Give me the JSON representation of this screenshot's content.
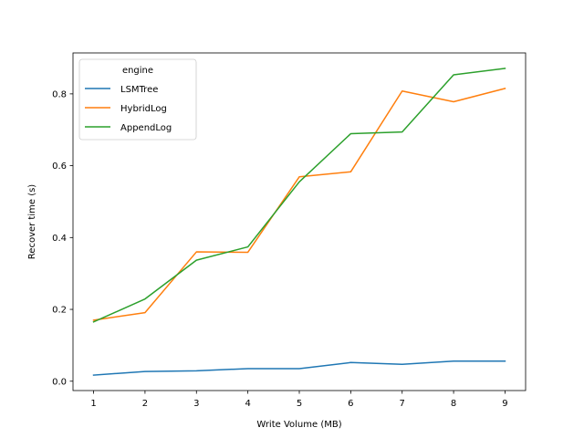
{
  "chart_data": {
    "type": "line",
    "xlabel": "Write Volume (MB)",
    "ylabel": "Recover time (s)",
    "x": [
      1,
      2,
      3,
      4,
      5,
      6,
      7,
      8,
      9
    ],
    "xticks": [
      1,
      2,
      3,
      4,
      5,
      6,
      7,
      8,
      9
    ],
    "xlim": [
      0.6,
      9.4
    ],
    "ylim": [
      -0.026,
      0.914
    ],
    "yticks": [
      "0.0",
      "0.2",
      "0.4",
      "0.6",
      "0.8"
    ],
    "grid": false,
    "legend": {
      "title": "engine",
      "placement": "top-left"
    },
    "series": [
      {
        "name": "LSMTree",
        "color": "#1f77b4",
        "values": [
          0.017,
          0.027,
          0.029,
          0.035,
          0.035,
          0.052,
          0.047,
          0.056,
          0.056
        ]
      },
      {
        "name": "HybridLog",
        "color": "#ff7f0e",
        "values": [
          0.17,
          0.191,
          0.36,
          0.359,
          0.569,
          0.583,
          0.808,
          0.778,
          0.815
        ]
      },
      {
        "name": "AppendLog",
        "color": "#2ca02c",
        "values": [
          0.165,
          0.229,
          0.337,
          0.374,
          0.555,
          0.689,
          0.694,
          0.853,
          0.871
        ]
      }
    ]
  }
}
